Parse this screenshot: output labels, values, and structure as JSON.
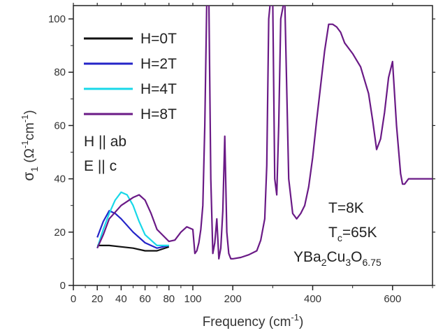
{
  "chart_data": {
    "type": "line",
    "title": "",
    "xlabel": "Frequency (cm",
    "xlabel_sup": "-1",
    "xlabel_end": ")",
    "ylabel": "σ",
    "ylabel_sub": "1",
    "ylabel_unit_open": " (Ω",
    "ylabel_unit_sup1": "-1",
    "ylabel_unit_mid": "cm",
    "ylabel_unit_sup2": "-1",
    "ylabel_unit_close": ")",
    "xlim": [
      0,
      700
    ],
    "ylim": [
      0,
      105
    ],
    "x_scale_note": "axis is expanded below 100 cm-1",
    "x_ticks": [
      0,
      20,
      40,
      60,
      80,
      100,
      200,
      400,
      600
    ],
    "x_tick_labels": [
      "0",
      "20",
      "40",
      "60",
      "80",
      "100",
      "200",
      "400",
      "600"
    ],
    "y_ticks": [
      0,
      20,
      40,
      60,
      80,
      100
    ],
    "y_tick_labels": [
      "0",
      "20",
      "40",
      "60",
      "80",
      "100"
    ],
    "grid": false,
    "legend_position": "top-left",
    "series": [
      {
        "name": "H=0T",
        "color": "#111111",
        "x": [
          20,
          30,
          40,
          50,
          60,
          70,
          80
        ],
        "y": [
          15,
          15,
          14.5,
          14,
          13,
          13,
          14.5
        ]
      },
      {
        "name": "H=2T",
        "color": "#2424c8",
        "x": [
          20,
          25,
          30,
          35,
          40,
          50,
          60,
          70,
          80
        ],
        "y": [
          18,
          24,
          28,
          27,
          25,
          20,
          16,
          14,
          15
        ]
      },
      {
        "name": "H=4T",
        "color": "#18d8e8",
        "x": [
          20,
          25,
          30,
          35,
          40,
          45,
          50,
          55,
          60,
          70,
          80
        ],
        "y": [
          14,
          21,
          27,
          32,
          35,
          34,
          30,
          24,
          19,
          15,
          15
        ]
      },
      {
        "name": "H=8T",
        "color": "#6a1a86",
        "x": [
          20,
          25,
          30,
          40,
          50,
          55,
          60,
          65,
          70,
          80,
          85,
          90,
          95,
          100,
          105,
          110,
          115,
          120,
          125,
          130,
          135,
          140,
          145,
          150,
          155,
          160,
          165,
          170,
          175,
          180,
          185,
          190,
          195,
          200,
          220,
          240,
          260,
          270,
          280,
          285,
          290,
          295,
          300,
          305,
          310,
          315,
          320,
          330,
          340,
          350,
          360,
          370,
          380,
          390,
          400,
          410,
          420,
          430,
          440,
          450,
          460,
          470,
          480,
          500,
          520,
          540,
          550,
          560,
          570,
          580,
          590,
          600,
          610,
          620,
          625,
          630,
          640,
          650,
          670,
          700
        ],
        "y": [
          14,
          19,
          25,
          30,
          33,
          34,
          32,
          27,
          21,
          16.5,
          17,
          20,
          22,
          21,
          12,
          13,
          16,
          21,
          30,
          60,
          108,
          108,
          40,
          12,
          16,
          25,
          10,
          14,
          28,
          56,
          20,
          12,
          10,
          10,
          10.5,
          11.5,
          13,
          17,
          25,
          45,
          100,
          108,
          108,
          40,
          34,
          60,
          100,
          108,
          40,
          27,
          25,
          27,
          30,
          37,
          48,
          62,
          75,
          88,
          98,
          98,
          97,
          95,
          91,
          87,
          82,
          72,
          62,
          51,
          55,
          65,
          78,
          84,
          60,
          42,
          38,
          38,
          40,
          40,
          40,
          40
        ]
      }
    ],
    "annotations": [
      {
        "text": "H || ab"
      },
      {
        "text": "E || c"
      },
      {
        "text": "T=8K"
      },
      {
        "text_main": "T",
        "text_sub": "c",
        "text_end": "=65K"
      },
      {
        "parts": [
          "YBa",
          "2",
          "Cu",
          "3",
          "O",
          "6.75"
        ]
      }
    ]
  }
}
